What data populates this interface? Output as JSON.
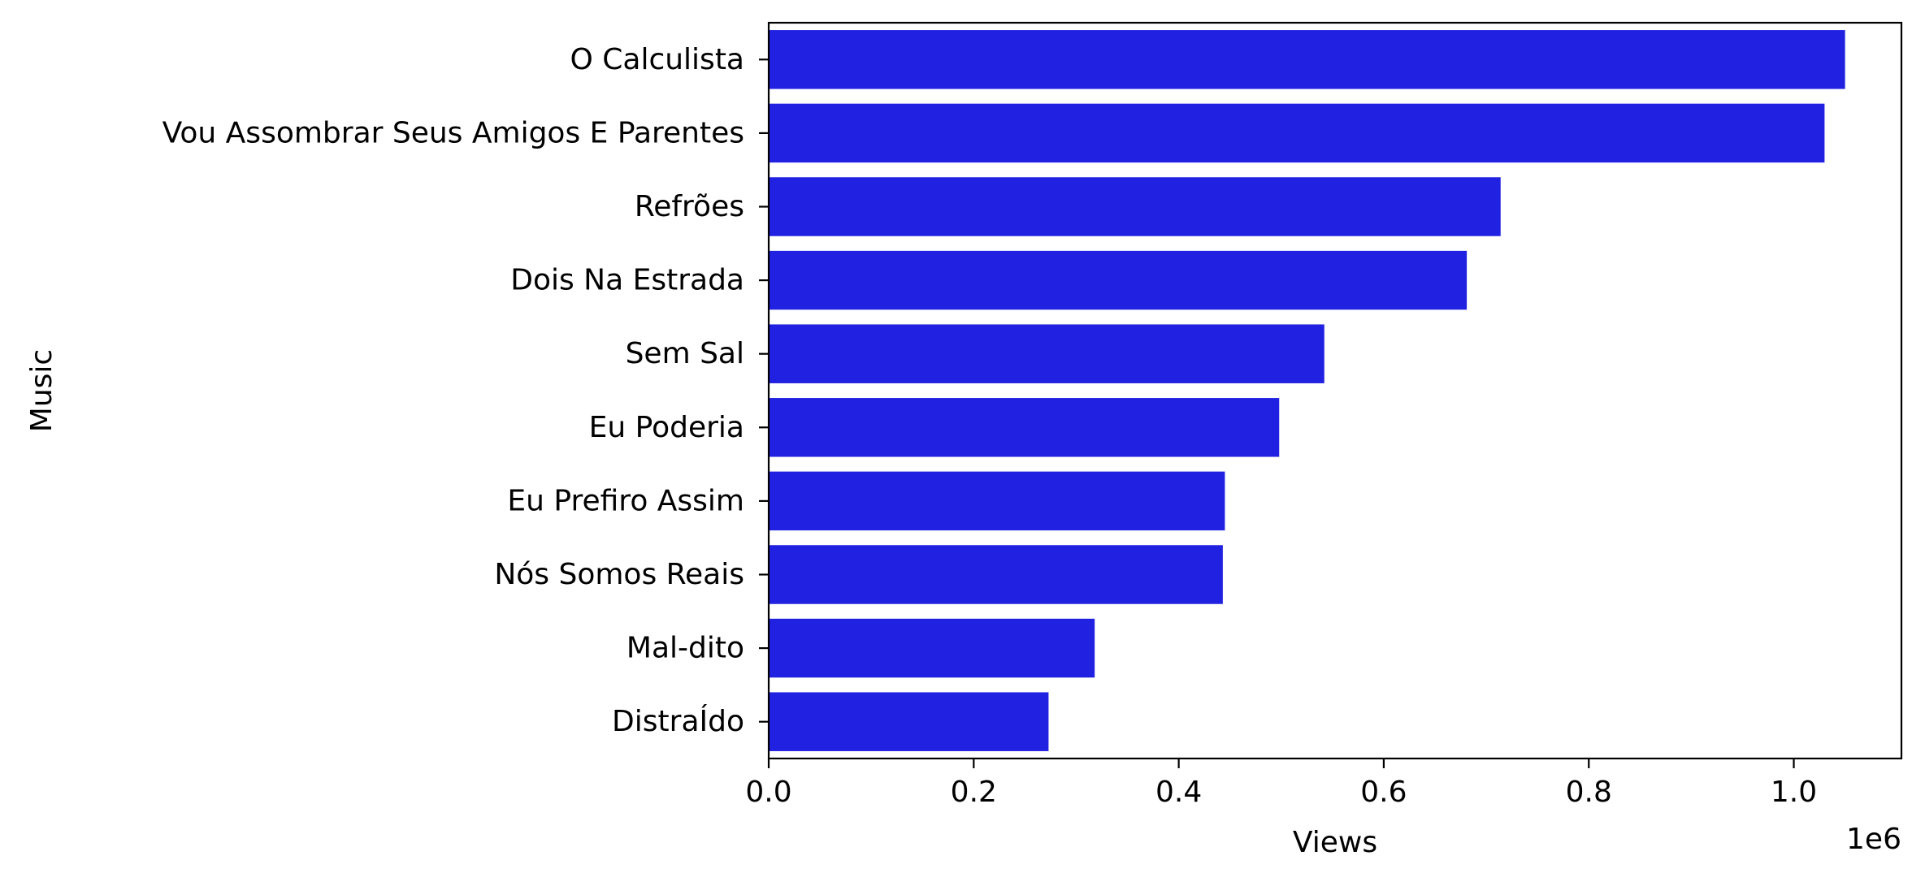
{
  "chart_data": {
    "type": "bar",
    "orientation": "horizontal",
    "categories": [
      "O Calculista",
      "Vou Assombrar Seus Amigos E Parentes",
      "Refrões",
      "Dois Na Estrada",
      "Sem Sal",
      "Eu Poderia",
      "Eu Prefiro Assim",
      "Nós Somos Reais",
      "Mal-dito",
      "DistraÍdo"
    ],
    "values": [
      1050000,
      1030000,
      714000,
      681000,
      542000,
      498000,
      445000,
      443000,
      318000,
      273000
    ],
    "xlabel": "Views",
    "ylabel": "Music",
    "xlim": [
      0,
      1105000
    ],
    "x_ticks": [
      0,
      200000,
      400000,
      600000,
      800000,
      1000000
    ],
    "x_tick_labels": [
      "0.0",
      "0.2",
      "0.4",
      "0.6",
      "0.8",
      "1.0"
    ],
    "offset_text": "1e6",
    "bar_color": "#2121e1",
    "grid": false,
    "legend": "none"
  }
}
